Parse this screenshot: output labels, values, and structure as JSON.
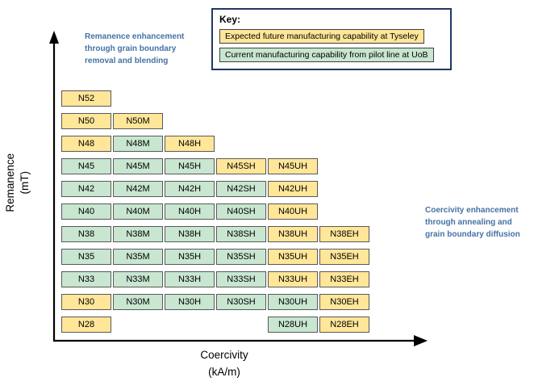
{
  "chart_data": {
    "type": "heatmap",
    "title": "",
    "xlabel": "Coercivity\n(kA/m)",
    "ylabel": "Remanence\n(mT)",
    "key": {
      "title": "Key:",
      "items": [
        {
          "label": "Expected future manufacturing capability at Tyseley",
          "status": "future"
        },
        {
          "label": "Current manufacturing capability from pilot line at UoB",
          "status": "current"
        }
      ]
    },
    "annotations": {
      "top_left": "Remanence enhancement\nthrough grain boundary\nremoval and blending",
      "right": "Coercivity enhancement\nthrough annealing and\ngrain boundary diffusion"
    },
    "colors": {
      "future": "#ffe699",
      "current": "#c8e6d0",
      "cell_border": "#595959",
      "annotation_text": "#4472a4",
      "axis": "#000000"
    },
    "grid": {
      "columns": 6,
      "rows": [
        {
          "cells": [
            {
              "col": 0,
              "label": "N52",
              "status": "future"
            }
          ]
        },
        {
          "cells": [
            {
              "col": 0,
              "label": "N50",
              "status": "future"
            },
            {
              "col": 1,
              "label": "N50M",
              "status": "future"
            }
          ]
        },
        {
          "cells": [
            {
              "col": 0,
              "label": "N48",
              "status": "future"
            },
            {
              "col": 1,
              "label": "N48M",
              "status": "current"
            },
            {
              "col": 2,
              "label": "N48H",
              "status": "future"
            }
          ]
        },
        {
          "cells": [
            {
              "col": 0,
              "label": "N45",
              "status": "current"
            },
            {
              "col": 1,
              "label": "N45M",
              "status": "current"
            },
            {
              "col": 2,
              "label": "N45H",
              "status": "current"
            },
            {
              "col": 3,
              "label": "N45SH",
              "status": "future"
            },
            {
              "col": 4,
              "label": "N45UH",
              "status": "future"
            }
          ]
        },
        {
          "cells": [
            {
              "col": 0,
              "label": "N42",
              "status": "current"
            },
            {
              "col": 1,
              "label": "N42M",
              "status": "current"
            },
            {
              "col": 2,
              "label": "N42H",
              "status": "current"
            },
            {
              "col": 3,
              "label": "N42SH",
              "status": "current"
            },
            {
              "col": 4,
              "label": "N42UH",
              "status": "future"
            }
          ]
        },
        {
          "cells": [
            {
              "col": 0,
              "label": "N40",
              "status": "current"
            },
            {
              "col": 1,
              "label": "N40M",
              "status": "current"
            },
            {
              "col": 2,
              "label": "N40H",
              "status": "current"
            },
            {
              "col": 3,
              "label": "N40SH",
              "status": "current"
            },
            {
              "col": 4,
              "label": "N40UH",
              "status": "future"
            }
          ]
        },
        {
          "cells": [
            {
              "col": 0,
              "label": "N38",
              "status": "current"
            },
            {
              "col": 1,
              "label": "N38M",
              "status": "current"
            },
            {
              "col": 2,
              "label": "N38H",
              "status": "current"
            },
            {
              "col": 3,
              "label": "N38SH",
              "status": "current"
            },
            {
              "col": 4,
              "label": "N38UH",
              "status": "future"
            },
            {
              "col": 5,
              "label": "N38EH",
              "status": "future"
            }
          ]
        },
        {
          "cells": [
            {
              "col": 0,
              "label": "N35",
              "status": "current"
            },
            {
              "col": 1,
              "label": "N35M",
              "status": "current"
            },
            {
              "col": 2,
              "label": "N35H",
              "status": "current"
            },
            {
              "col": 3,
              "label": "N35SH",
              "status": "current"
            },
            {
              "col": 4,
              "label": "N35UH",
              "status": "future"
            },
            {
              "col": 5,
              "label": "N35EH",
              "status": "future"
            }
          ]
        },
        {
          "cells": [
            {
              "col": 0,
              "label": "N33",
              "status": "current"
            },
            {
              "col": 1,
              "label": "N33M",
              "status": "current"
            },
            {
              "col": 2,
              "label": "N33H",
              "status": "current"
            },
            {
              "col": 3,
              "label": "N33SH",
              "status": "current"
            },
            {
              "col": 4,
              "label": "N33UH",
              "status": "future"
            },
            {
              "col": 5,
              "label": "N33EH",
              "status": "future"
            }
          ]
        },
        {
          "cells": [
            {
              "col": 0,
              "label": "N30",
              "status": "future"
            },
            {
              "col": 1,
              "label": "N30M",
              "status": "current"
            },
            {
              "col": 2,
              "label": "N30H",
              "status": "current"
            },
            {
              "col": 3,
              "label": "N30SH",
              "status": "current"
            },
            {
              "col": 4,
              "label": "N30UH",
              "status": "current"
            },
            {
              "col": 5,
              "label": "N30EH",
              "status": "future"
            }
          ]
        },
        {
          "cells": [
            {
              "col": 0,
              "label": "N28",
              "status": "future"
            },
            {
              "col": 4,
              "label": "N28UH",
              "status": "current"
            },
            {
              "col": 5,
              "label": "N28EH",
              "status": "future"
            }
          ]
        }
      ]
    }
  }
}
